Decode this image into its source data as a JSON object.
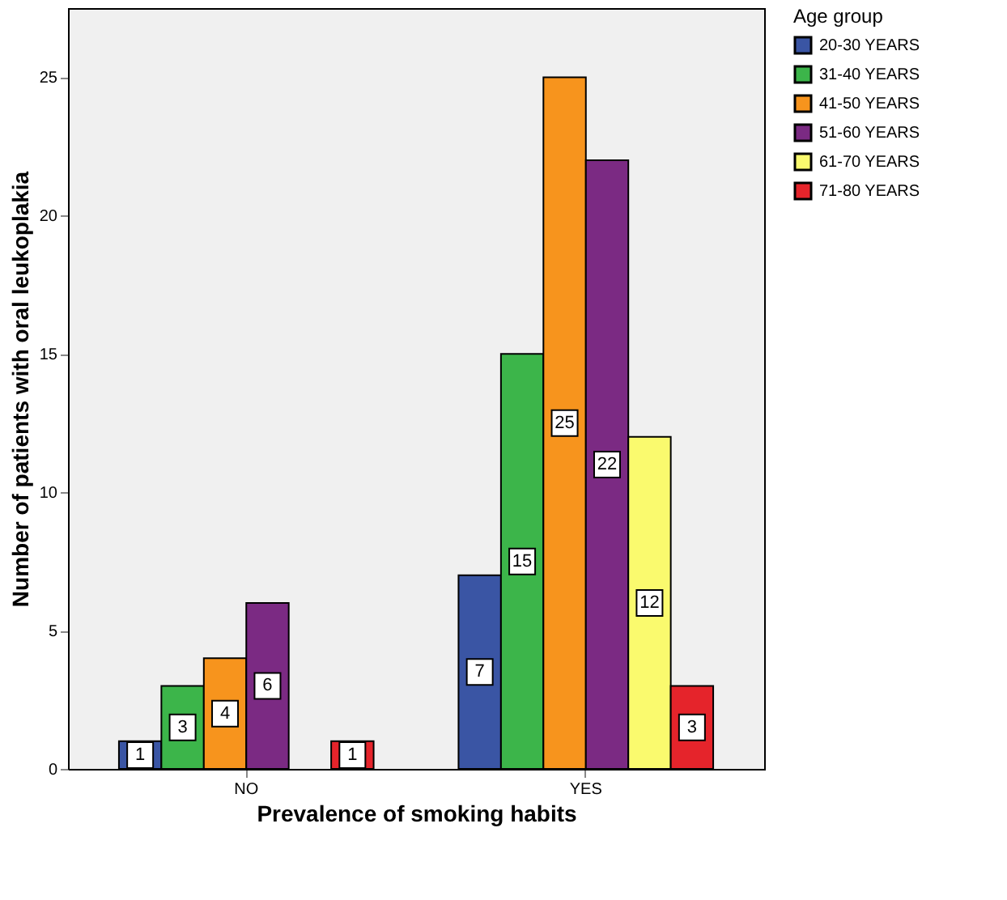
{
  "chart_data": {
    "type": "bar",
    "xlabel": "Prevalence of smoking habits",
    "ylabel": "Number of patients with oral leukoplakia",
    "legend_title": "Age group",
    "legend": "top right",
    "categories": [
      "NO",
      "YES"
    ],
    "series": [
      {
        "name": "20-30 YEARS",
        "color": "#3a55a4",
        "values": [
          1,
          7
        ]
      },
      {
        "name": "31-40 YEARS",
        "color": "#3cb54a",
        "values": [
          3,
          15
        ]
      },
      {
        "name": "41-50 YEARS",
        "color": "#f7941d",
        "values": [
          4,
          25
        ]
      },
      {
        "name": "51-60 YEARS",
        "color": "#7b2a83",
        "values": [
          6,
          22
        ]
      },
      {
        "name": "61-70 YEARS",
        "color": "#fafa6e",
        "values": [
          null,
          12
        ]
      },
      {
        "name": "71-80 YEARS",
        "color": "#e5242b",
        "values": [
          1,
          3
        ]
      }
    ],
    "ylim": [
      0,
      27.5
    ],
    "yticks": [
      0,
      5,
      10,
      15,
      20,
      25
    ],
    "data_labels": true,
    "grid": false
  }
}
